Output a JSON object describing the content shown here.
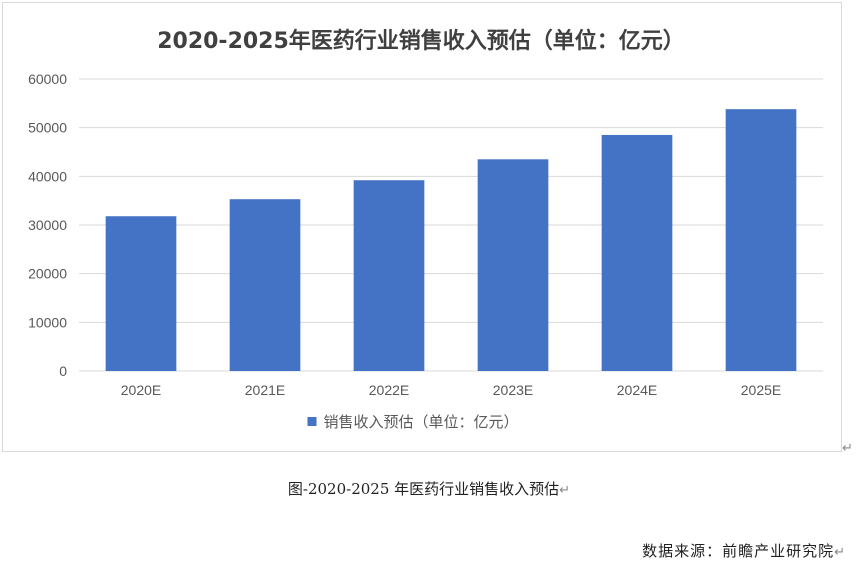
{
  "chart_data": {
    "type": "bar",
    "title": "2020-2025年医药行业销售收入预估（单位：亿元）",
    "categories": [
      "2020E",
      "2021E",
      "2022E",
      "2023E",
      "2024E",
      "2025E"
    ],
    "series": [
      {
        "name": "销售收入预估（单位：亿元）",
        "values": [
          31800,
          35300,
          39200,
          43500,
          48500,
          53800
        ]
      }
    ],
    "yticks": [
      "0",
      "10000",
      "20000",
      "30000",
      "40000",
      "50000",
      "60000"
    ],
    "ylim": [
      0,
      60000
    ],
    "grid": true,
    "legend_position": "bottom",
    "bar_color": "#4472c4"
  },
  "caption": "图-2020-2025 年医药行业销售收入预估",
  "source": "数据来源：前瞻产业研究院",
  "colors": {
    "bar": "#4472c4",
    "grid": "#d9d9d9",
    "text": "#595959"
  }
}
